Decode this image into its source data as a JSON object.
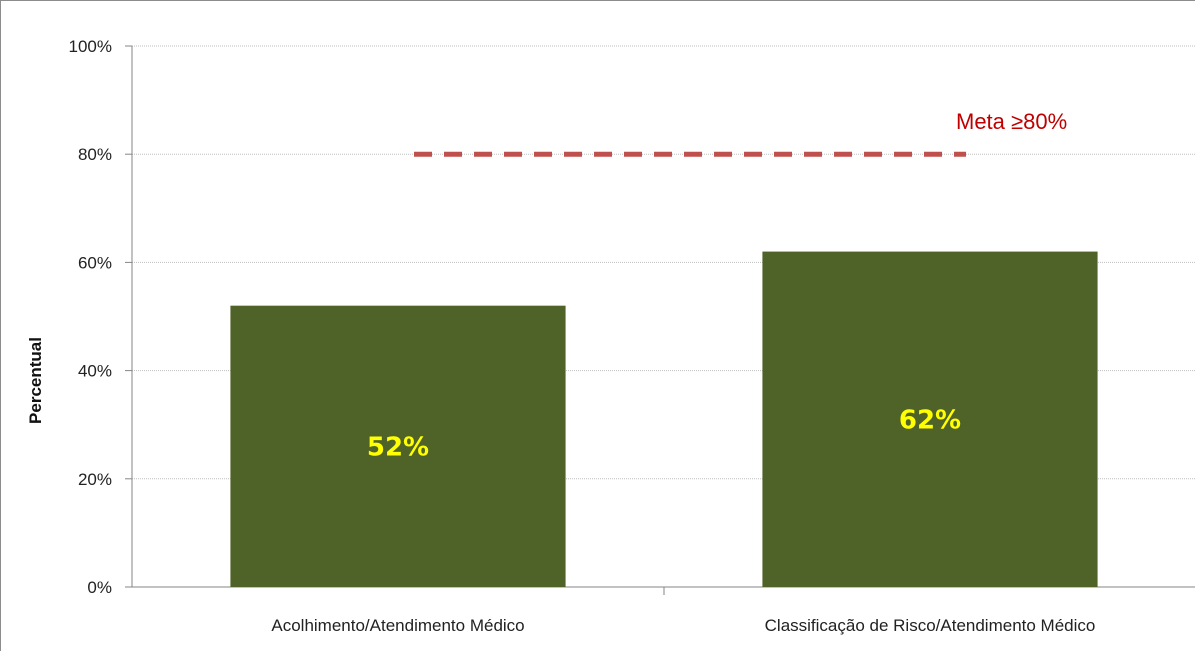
{
  "chart_data": {
    "type": "bar",
    "categories": [
      "Acolhimento/Atendimento Médico",
      "Classificação de Risco/Atendimento Médico"
    ],
    "values": [
      52,
      62
    ],
    "data_labels": [
      "52%",
      "62%"
    ],
    "title": "",
    "xlabel": "",
    "ylabel": "Percentual",
    "ylim": [
      0,
      100
    ],
    "yticks": [
      0,
      20,
      40,
      60,
      80,
      100
    ],
    "ytick_labels": [
      "0%",
      "20%",
      "40%",
      "60%",
      "80%",
      "100%"
    ],
    "grid": true,
    "legend": "none",
    "target_line": {
      "value": 80,
      "label": "Meta ≥80%",
      "style": "dashed"
    },
    "colors": {
      "bar": "#4f6228",
      "data_label": "#ffff00",
      "target_line": "#c0504d",
      "target_label": "#c00000",
      "grid": "#bfbfbf",
      "axis": "#868686"
    }
  }
}
